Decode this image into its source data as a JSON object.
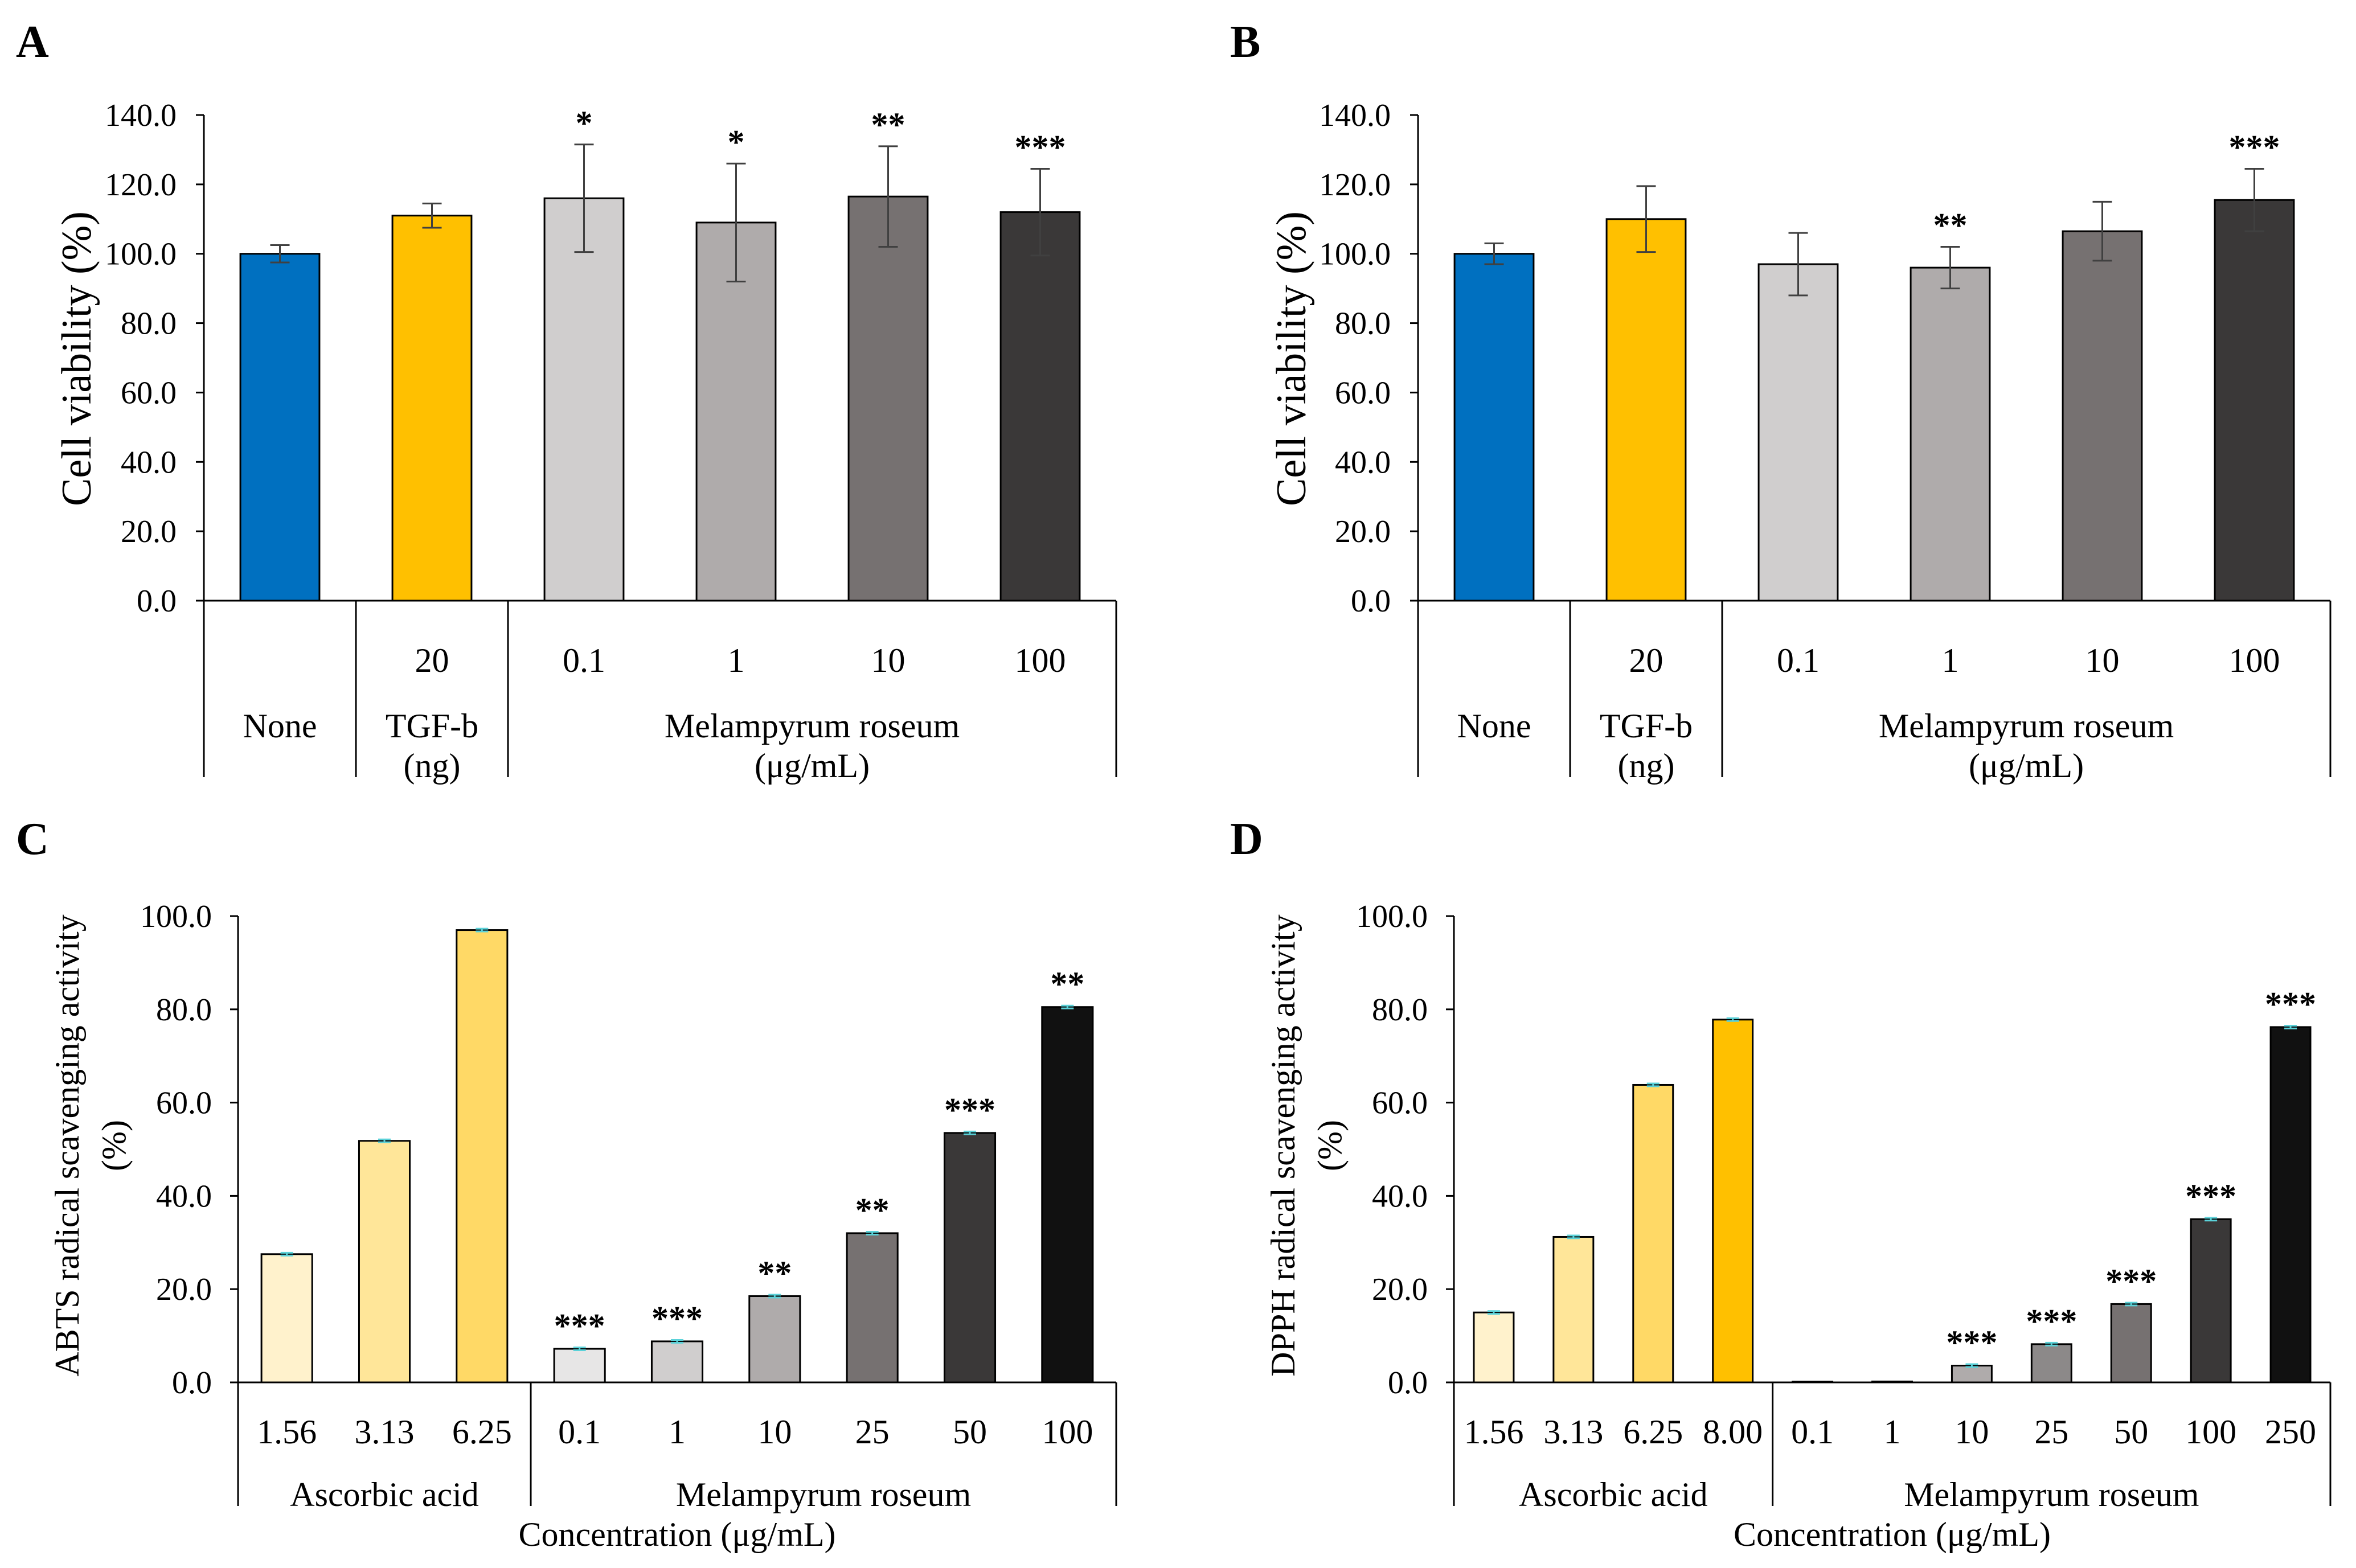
{
  "chart_data": [
    {
      "panel": "A",
      "type": "bar",
      "ylabel": "Cell viability (%)",
      "xlabel": "",
      "ylim": [
        0,
        140
      ],
      "yticks": [
        "0.0",
        "20.0",
        "40.0",
        "60.0",
        "80.0",
        "100.0",
        "120.0",
        "140.0"
      ],
      "categories": [
        "",
        "20",
        "0.1",
        "1",
        "10",
        "100"
      ],
      "values": [
        100.0,
        111.0,
        116.0,
        109.0,
        116.5,
        112.0
      ],
      "errors": [
        2.5,
        3.5,
        15.5,
        17.0,
        14.5,
        12.5
      ],
      "significance": [
        "",
        "",
        "*",
        "*",
        "**",
        "***"
      ],
      "colors": [
        "#0070C0",
        "#FFC000",
        "#D0CECE",
        "#AFABAB",
        "#767171",
        "#3A3838"
      ],
      "groups": [
        {
          "label": "None",
          "sublabel": "",
          "start": 0,
          "end": 0
        },
        {
          "label": "TGF-b",
          "sublabel": "(ng)",
          "start": 1,
          "end": 1
        },
        {
          "label": "Melampyrum roseum",
          "sublabel": "(μg/mL)",
          "start": 2,
          "end": 5
        }
      ]
    },
    {
      "panel": "B",
      "type": "bar",
      "ylabel": "Cell viability (%)",
      "xlabel": "",
      "ylim": [
        0,
        140
      ],
      "yticks": [
        "0.0",
        "20.0",
        "40.0",
        "60.0",
        "80.0",
        "100.0",
        "120.0",
        "140.0"
      ],
      "categories": [
        "",
        "20",
        "0.1",
        "1",
        "10",
        "100"
      ],
      "values": [
        100.0,
        110.0,
        97.0,
        96.0,
        106.5,
        115.5
      ],
      "errors": [
        3.0,
        9.5,
        9.0,
        6.0,
        8.5,
        9.0
      ],
      "significance": [
        "",
        "",
        "",
        "**",
        "",
        "***"
      ],
      "colors": [
        "#0070C0",
        "#FFC000",
        "#D0CECE",
        "#AFABAB",
        "#767171",
        "#3A3838"
      ],
      "groups": [
        {
          "label": "None",
          "sublabel": "",
          "start": 0,
          "end": 0
        },
        {
          "label": "TGF-b",
          "sublabel": "(ng)",
          "start": 1,
          "end": 1
        },
        {
          "label": "Melampyrum roseum",
          "sublabel": "(μg/mL)",
          "start": 2,
          "end": 5
        }
      ]
    },
    {
      "panel": "C",
      "type": "bar",
      "ylabel": "ABTS radical scavenging activity",
      "ylabel2": "(%)",
      "xlabel": "Concentration (μg/mL)",
      "ylim": [
        0,
        100
      ],
      "yticks": [
        "0.0",
        "20.0",
        "40.0",
        "60.0",
        "80.0",
        "100.0"
      ],
      "categories": [
        "1.56",
        "3.13",
        "6.25",
        "0.1",
        "1",
        "10",
        "25",
        "50",
        "100"
      ],
      "values": [
        27.5,
        51.8,
        97.0,
        7.2,
        8.8,
        18.5,
        32.0,
        53.5,
        80.5
      ],
      "errors": [
        0.3,
        0.3,
        0.3,
        0.3,
        0.3,
        0.3,
        0.3,
        0.3,
        0.3
      ],
      "significance": [
        "",
        "",
        "",
        "***",
        "***",
        "**",
        "**",
        "***",
        "**"
      ],
      "colors": [
        "#FFF2CC",
        "#FFE699",
        "#FFD966",
        "#E7E6E6",
        "#D0CECE",
        "#AFABAB",
        "#767171",
        "#3A3838",
        "#111111"
      ],
      "error_color": "#5BD2D9",
      "groups": [
        {
          "label": "Ascorbic acid",
          "sublabel": "",
          "start": 0,
          "end": 2
        },
        {
          "label": "Melampyrum roseum",
          "sublabel": "",
          "start": 3,
          "end": 8
        }
      ]
    },
    {
      "panel": "D",
      "type": "bar",
      "ylabel": "DPPH radical scavenging activity",
      "ylabel2": "(%)",
      "xlabel": "Concentration (μg/mL)",
      "ylim": [
        0,
        100
      ],
      "yticks": [
        "0.0",
        "20.0",
        "40.0",
        "60.0",
        "80.0",
        "100.0"
      ],
      "categories": [
        "1.56",
        "3.13",
        "6.25",
        "8.00",
        "0.1",
        "1",
        "10",
        "25",
        "50",
        "100",
        "250"
      ],
      "values": [
        15.0,
        31.2,
        63.8,
        77.8,
        0.0,
        0.2,
        3.6,
        8.2,
        16.8,
        35.0,
        76.2
      ],
      "errors": [
        0.3,
        0.3,
        0.3,
        0.3,
        0.0,
        0.0,
        0.3,
        0.3,
        0.3,
        0.3,
        0.3
      ],
      "significance": [
        "",
        "",
        "",
        "",
        "",
        "",
        "***",
        "***",
        "***",
        "***",
        "***"
      ],
      "colors": [
        "#FFF2CC",
        "#FFE699",
        "#FFD966",
        "#FFC000",
        "#F2F2F2",
        "#E7E6E6",
        "#AFABAB",
        "#8C8989",
        "#767171",
        "#3A3838",
        "#111111"
      ],
      "error_color": "#5BD2D9",
      "groups": [
        {
          "label": "Ascorbic acid",
          "sublabel": "",
          "start": 0,
          "end": 3
        },
        {
          "label": "Melampyrum roseum",
          "sublabel": "",
          "start": 4,
          "end": 10
        }
      ]
    }
  ]
}
